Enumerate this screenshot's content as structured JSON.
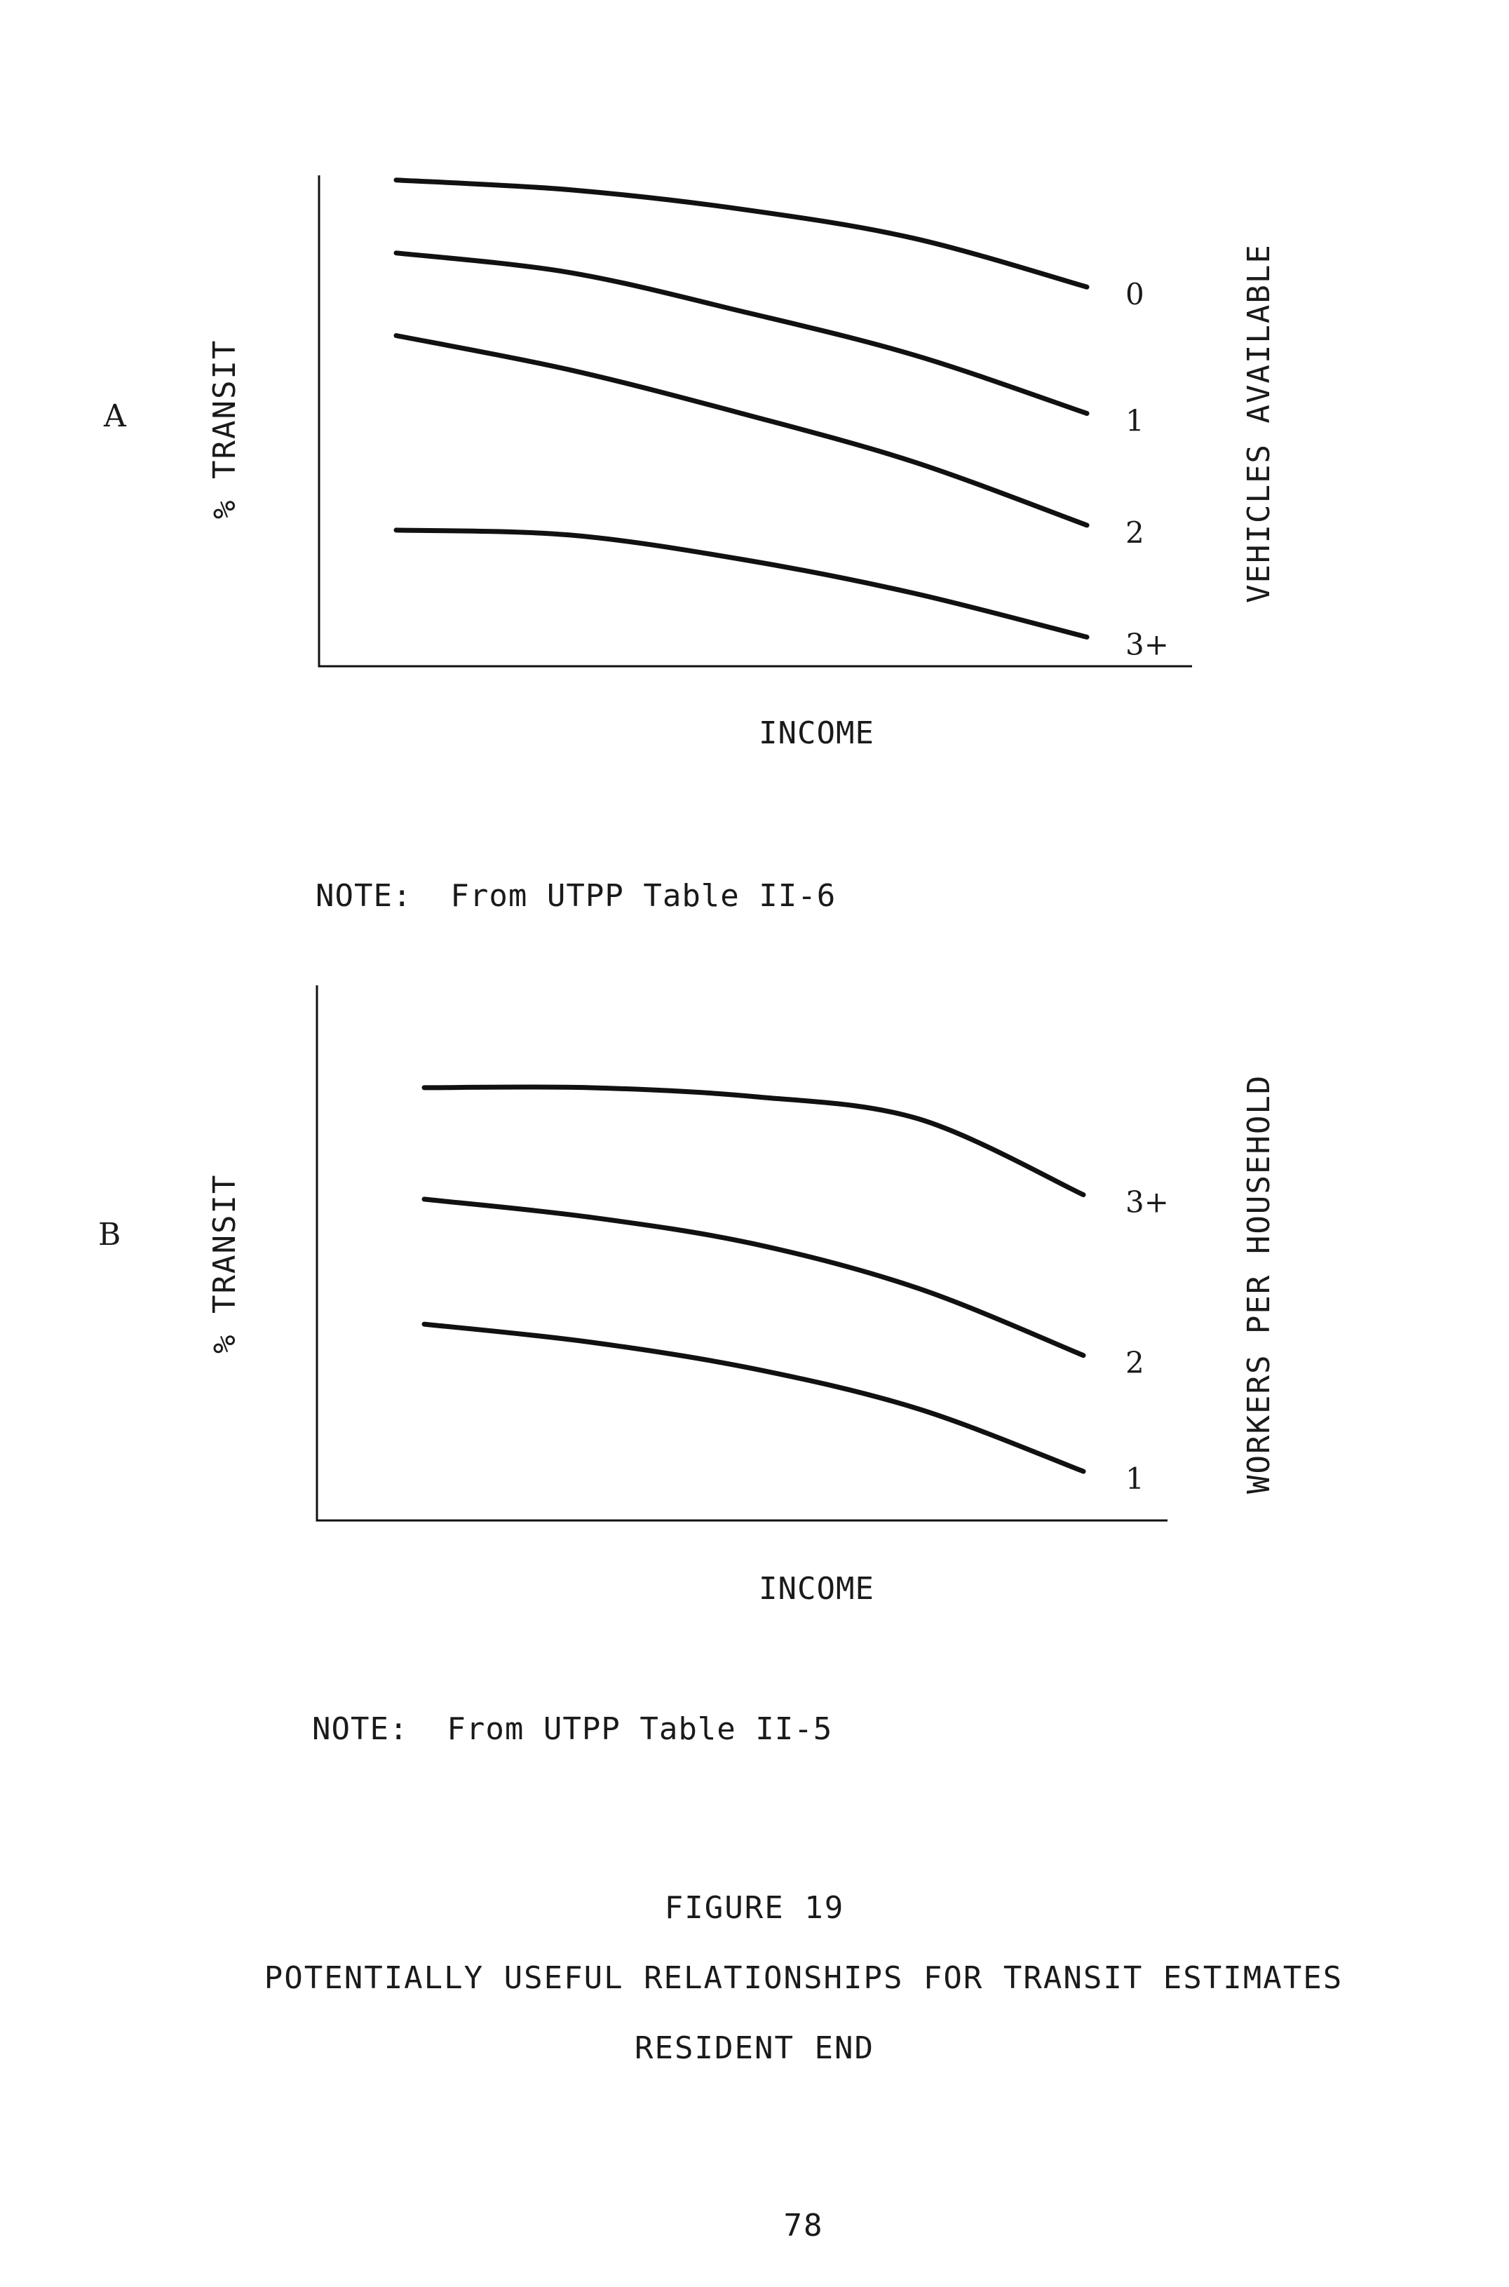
{
  "chart_data": [
    {
      "type": "line",
      "panel": "A",
      "xlabel": "INCOME",
      "ylabel": "% TRANSIT",
      "legend_title": "VEHICLES AVAILABLE",
      "note": "NOTE:  From UTPP Table II-6",
      "x": [
        0,
        0.25,
        0.5,
        0.75,
        1
      ],
      "series": [
        {
          "name": "0",
          "values": [
            1.0,
            0.98,
            0.94,
            0.88,
            0.78
          ]
        },
        {
          "name": "1",
          "values": [
            0.85,
            0.81,
            0.73,
            0.64,
            0.52
          ]
        },
        {
          "name": "2",
          "values": [
            0.68,
            0.61,
            0.52,
            0.42,
            0.29
          ]
        },
        {
          "name": "3+",
          "values": [
            0.28,
            0.27,
            0.22,
            0.15,
            0.06
          ]
        }
      ],
      "ylim": [
        0,
        1.05
      ]
    },
    {
      "type": "line",
      "panel": "B",
      "xlabel": "INCOME",
      "ylabel": "% TRANSIT",
      "legend_title": "WORKERS PER HOUSEHOLD",
      "note": "NOTE:  From UTPP Table II-5",
      "x": [
        0,
        0.25,
        0.5,
        0.75,
        1
      ],
      "series": [
        {
          "name": "3+",
          "values": [
            0.97,
            0.97,
            0.95,
            0.9,
            0.73
          ]
        },
        {
          "name": "2",
          "values": [
            0.72,
            0.68,
            0.62,
            0.52,
            0.37
          ]
        },
        {
          "name": "1",
          "values": [
            0.44,
            0.4,
            0.34,
            0.25,
            0.11
          ]
        }
      ],
      "ylim": [
        0,
        1.05
      ]
    }
  ],
  "figure": {
    "number": "FIGURE 19",
    "caption_line1": "POTENTIALLY USEFUL RELATIONSHIPS FOR TRANSIT ESTIMATES",
    "caption_line2": "RESIDENT END"
  },
  "page_number": "78"
}
